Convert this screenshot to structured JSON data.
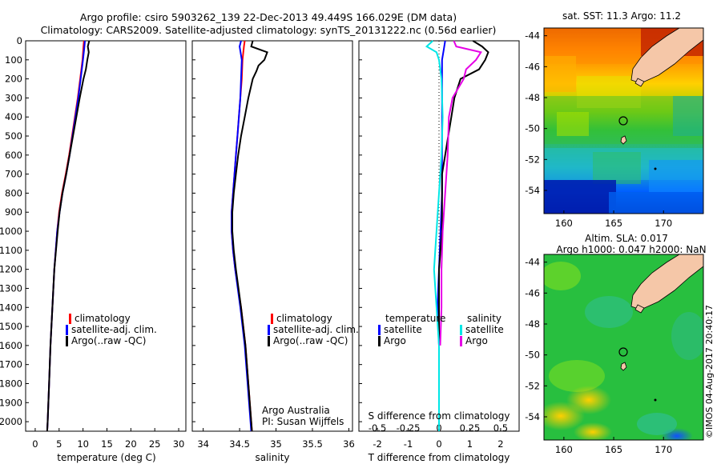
{
  "header": {
    "title_line1": "Argo profile: csiro 5903262_139 22-Dec-2013 49.449S 166.029E (DM data)",
    "title_line2": "Climatology: CARS2009. Satellite-adjusted climatology: synTS_20131222.nc (0.56d earlier)"
  },
  "credits": {
    "argo_australia": "Argo Australia",
    "pi": "PI: Susan Wijffels",
    "imos": "©IMOS 04-Aug-2017 20:40:17"
  },
  "colors": {
    "climatology": "#ff0000",
    "satellite": "#0000ff",
    "argo": "#000000",
    "s_satellite": "#00e6e6",
    "s_argo": "#e600e6",
    "land": "#f5c7a8"
  },
  "map_titles": {
    "sst": "sat. SST: 11.3 Argo: 11.2",
    "sla_line1": "Altim. SLA: 0.017",
    "sla_line2": "Argo h1000: 0.047 h2000: NaN"
  },
  "chart_data": [
    {
      "type": "line",
      "panel": "temperature",
      "xlabel": "temperature (deg C)",
      "xlim": [
        -2,
        31.5
      ],
      "xticks": [
        "0",
        "5",
        "10",
        "15",
        "20",
        "25",
        "30"
      ],
      "ylim": [
        2050,
        0
      ],
      "yticks": [
        "0",
        "100",
        "200",
        "300",
        "400",
        "500",
        "600",
        "700",
        "800",
        "900",
        "1000",
        "1100",
        "1200",
        "1300",
        "1400",
        "1500",
        "1600",
        "1700",
        "1800",
        "1900",
        "2000"
      ],
      "legend": [
        "climatology",
        "satellite-adj. clim.",
        "Argo(..raw -QC)"
      ],
      "series": [
        {
          "name": "climatology",
          "depth": [
            0,
            30,
            100,
            200,
            300,
            400,
            500,
            600,
            700,
            800,
            900,
            1000,
            1200,
            1400,
            1600,
            1800,
            2000,
            2050
          ],
          "values": [
            10.2,
            10.1,
            9.9,
            9.4,
            8.9,
            8.3,
            7.7,
            7.1,
            6.4,
            5.6,
            5.0,
            4.6,
            4.0,
            3.6,
            3.2,
            2.9,
            2.6,
            2.5
          ]
        },
        {
          "name": "satellite-adj. clim.",
          "depth": [
            0,
            30,
            100,
            200,
            300,
            400,
            500,
            600,
            700,
            800,
            900,
            1000,
            1200,
            1400,
            1600,
            1800,
            2000,
            2050
          ],
          "values": [
            10.4,
            10.3,
            10.0,
            9.5,
            9.0,
            8.4,
            7.8,
            7.2,
            6.5,
            5.7,
            5.1,
            4.6,
            4.0,
            3.6,
            3.2,
            2.9,
            2.6,
            2.5
          ]
        },
        {
          "name": "Argo(..raw -QC)",
          "depth": [
            0,
            30,
            60,
            100,
            150,
            200,
            300,
            400,
            500,
            600,
            700,
            800,
            900,
            1000,
            1200,
            1400,
            1600,
            1800,
            2000,
            2050
          ],
          "values": [
            11.3,
            11.0,
            11.2,
            10.9,
            10.6,
            10.1,
            9.3,
            8.6,
            7.9,
            7.2,
            6.5,
            5.7,
            5.1,
            4.7,
            4.0,
            3.6,
            3.2,
            2.9,
            2.6,
            2.5
          ]
        }
      ]
    },
    {
      "type": "line",
      "panel": "salinity",
      "xlabel": "salinity",
      "xlim": [
        33.85,
        36.05
      ],
      "xticks": [
        "34",
        "34.5",
        "35",
        "35.5",
        "36"
      ],
      "ylim": [
        2050,
        0
      ],
      "legend": [
        "climatology",
        "satellite-adj. clim.",
        "Argo(..raw -QC)"
      ],
      "series": [
        {
          "name": "climatology",
          "depth": [
            0,
            30,
            100,
            200,
            300,
            400,
            500,
            600,
            700,
            800,
            900,
            1000,
            1100,
            1200,
            1400,
            1600,
            1800,
            2000,
            2050
          ],
          "values": [
            34.57,
            34.56,
            34.54,
            34.53,
            34.51,
            34.49,
            34.47,
            34.45,
            34.43,
            34.41,
            34.39,
            34.39,
            34.41,
            34.44,
            34.52,
            34.58,
            34.62,
            34.66,
            34.67
          ]
        },
        {
          "name": "satellite-adj. clim.",
          "depth": [
            0,
            30,
            100,
            200,
            300,
            400,
            500,
            600,
            700,
            800,
            900,
            1000,
            1100,
            1200,
            1400,
            1600,
            1800,
            2000,
            2050
          ],
          "values": [
            34.52,
            34.5,
            34.53,
            34.52,
            34.51,
            34.49,
            34.47,
            34.45,
            34.43,
            34.41,
            34.39,
            34.39,
            34.41,
            34.44,
            34.51,
            34.57,
            34.61,
            34.65,
            34.66
          ]
        },
        {
          "name": "Argo(..raw -QC)",
          "depth": [
            0,
            30,
            60,
            100,
            130,
            160,
            200,
            300,
            400,
            500,
            600,
            700,
            800,
            900,
            1000,
            1100,
            1200,
            1400,
            1600,
            1800,
            2000,
            2050
          ],
          "values": [
            34.68,
            34.66,
            34.88,
            34.84,
            34.76,
            34.73,
            34.68,
            34.62,
            34.57,
            34.52,
            34.48,
            34.45,
            34.42,
            34.4,
            34.4,
            34.42,
            34.45,
            34.52,
            34.58,
            34.62,
            34.66,
            34.67
          ]
        }
      ]
    },
    {
      "type": "line",
      "panel": "difference",
      "xlabel": "T difference from climatology",
      "xlabel_top": "S difference from climatology",
      "xlim": [
        -2.6,
        2.6
      ],
      "xticks": [
        "-2",
        "-1",
        "0",
        "1",
        "2"
      ],
      "xticks_s": [
        "-0.5",
        "-0.25",
        "0",
        "0.25",
        "0.5"
      ],
      "ylim": [
        2050,
        0
      ],
      "legend_temperature": [
        "temperature",
        "satellite",
        "Argo"
      ],
      "legend_salinity": [
        "salinity",
        "satellite",
        "Argo"
      ],
      "series": [
        {
          "name": "satellite",
          "group": "temperature",
          "depth": [
            0,
            50,
            100,
            200,
            400,
            600,
            800,
            1000,
            1200,
            1400,
            1600,
            1800,
            2000,
            2050
          ],
          "values": [
            0.2,
            0.15,
            0.1,
            0.1,
            0.1,
            0.1,
            0.1,
            0.05,
            0.0,
            -0.05,
            0.0,
            0.0,
            0.0,
            0.0
          ]
        },
        {
          "name": "Argo",
          "group": "temperature",
          "depth": [
            0,
            30,
            60,
            100,
            150,
            200,
            300,
            400,
            500,
            600,
            700,
            800,
            900,
            1000,
            1200,
            1400,
            1600,
            1800,
            2000
          ],
          "values": [
            1.1,
            1.4,
            1.6,
            1.5,
            1.3,
            0.7,
            0.5,
            0.4,
            0.3,
            0.2,
            0.1,
            0.1,
            0.1,
            0.1,
            0.0,
            0.0,
            0.0,
            0.0,
            0.0
          ]
        },
        {
          "name": "satellite",
          "group": "salinity",
          "depth": [
            0,
            30,
            60,
            100,
            200,
            400,
            600,
            800,
            1000,
            1200,
            1400,
            1600,
            1800,
            2000,
            2050
          ],
          "values": [
            -0.05,
            -0.1,
            -0.02,
            0.0,
            0.02,
            0.03,
            0.02,
            0.0,
            -0.02,
            -0.04,
            -0.02,
            0.0,
            0.0,
            0.0,
            0.0
          ]
        },
        {
          "name": "Argo",
          "group": "salinity",
          "depth": [
            0,
            30,
            60,
            100,
            150,
            200,
            300,
            400,
            600,
            800,
            1000,
            1200,
            1400,
            1600
          ],
          "values": [
            0.12,
            0.14,
            0.34,
            0.3,
            0.22,
            0.2,
            0.11,
            0.08,
            0.07,
            0.05,
            0.03,
            0.02,
            0.02,
            0.01
          ]
        }
      ]
    },
    {
      "type": "heatmap",
      "panel": "sst_map",
      "title": "sat. SST: 11.3 Argo: 11.2",
      "xlim": [
        158,
        174
      ],
      "ylim": [
        -55.5,
        -43.5
      ],
      "xticks": [
        "160",
        "165",
        "170"
      ],
      "yticks": [
        "-44",
        "-46",
        "-48",
        "-50",
        "-52",
        "-54"
      ],
      "float_position": {
        "lon": 166.029,
        "lat": -49.449
      }
    },
    {
      "type": "heatmap",
      "panel": "sla_map",
      "title": "Altim. SLA: 0.017 / Argo h1000: 0.047 h2000: NaN",
      "xlim": [
        158,
        174
      ],
      "ylim": [
        -55.5,
        -43.5
      ],
      "xticks": [
        "160",
        "165",
        "170"
      ],
      "yticks": [
        "-44",
        "-46",
        "-48",
        "-50",
        "-52",
        "-54"
      ],
      "float_position": {
        "lon": 166.029,
        "lat": -49.449
      }
    }
  ]
}
